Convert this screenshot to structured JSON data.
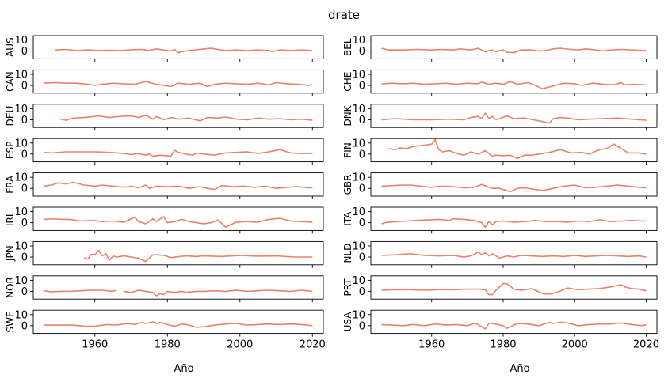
{
  "chart_data": {
    "type": "line",
    "title": "drate",
    "xlabel": "Año",
    "xlim": [
      1943,
      2023
    ],
    "ylim": [
      -7,
      14
    ],
    "xticks": [
      1960,
      1980,
      2000,
      2020
    ],
    "yticks": [
      0,
      10
    ],
    "line_color": "#e8826a",
    "grid": false,
    "panels": [
      {
        "name": "AUS",
        "x": [
          1949,
          1952,
          1955,
          1958,
          1961,
          1964,
          1967,
          1970,
          1973,
          1975,
          1977,
          1979,
          1981,
          1982,
          1983,
          1984,
          1986,
          1989,
          1992,
          1994,
          1996,
          1999,
          2002,
          2005,
          2008,
          2009,
          2011,
          2014,
          2017,
          2020
        ],
        "values": [
          1,
          1.5,
          0.5,
          1,
          0.5,
          0.8,
          0.5,
          1.2,
          1.5,
          0.5,
          2,
          1,
          0,
          1.5,
          -1.5,
          -0.5,
          0.5,
          1.5,
          2.5,
          1.5,
          0.5,
          1,
          0.5,
          1,
          0.5,
          -0.5,
          1,
          0.5,
          1,
          0.5
        ]
      },
      {
        "name": "BEL",
        "x": [
          1946,
          1948,
          1952,
          1956,
          1960,
          1963,
          1966,
          1968,
          1971,
          1973,
          1974,
          1975,
          1977,
          1978,
          1980,
          1981,
          1983,
          1985,
          1988,
          1990,
          1992,
          1994,
          1996,
          1999,
          2001,
          2003,
          2006,
          2008,
          2010,
          2013,
          2016,
          2020
        ],
        "values": [
          2.5,
          1,
          1,
          1.5,
          1,
          1.5,
          1,
          2,
          1,
          2.5,
          1,
          -0.5,
          1,
          -0.5,
          1,
          -1,
          -1.5,
          1,
          1,
          0,
          0.5,
          2,
          2.5,
          1.5,
          1,
          2,
          1,
          0,
          1,
          1.5,
          1,
          0.5
        ]
      },
      {
        "name": "CAN",
        "x": [
          1946,
          1949,
          1952,
          1955,
          1958,
          1960,
          1962,
          1965,
          1968,
          1971,
          1974,
          1977,
          1979,
          1981,
          1983,
          1986,
          1989,
          1991,
          1993,
          1996,
          1999,
          2002,
          2005,
          2008,
          2010,
          2013,
          2016,
          2019,
          2020
        ],
        "values": [
          2,
          2.5,
          2,
          2,
          1,
          0,
          1,
          2,
          1.5,
          1,
          3.5,
          1,
          0,
          -1,
          2,
          1,
          2,
          -1,
          1,
          2,
          1.5,
          1,
          2,
          0.5,
          2.5,
          1.5,
          1,
          0,
          1
        ]
      },
      {
        "name": "CHE",
        "x": [
          1946,
          1949,
          1952,
          1955,
          1958,
          1961,
          1964,
          1967,
          1970,
          1973,
          1974,
          1976,
          1978,
          1980,
          1982,
          1984,
          1987,
          1989,
          1991,
          1994,
          1997,
          2000,
          2002,
          2005,
          2008,
          2011,
          2013,
          2014,
          2016,
          2020
        ],
        "values": [
          1.5,
          2,
          1.5,
          2,
          1,
          1.5,
          2,
          1,
          2,
          1.5,
          3,
          1,
          2,
          1,
          3.5,
          1,
          2.5,
          0,
          -3,
          -0.5,
          2,
          1.5,
          0,
          2,
          1,
          0.5,
          2.5,
          0.5,
          1,
          0.5
        ]
      },
      {
        "name": "DEU",
        "x": [
          1950,
          1952,
          1954,
          1957,
          1960,
          1961,
          1964,
          1967,
          1970,
          1972,
          1974,
          1976,
          1977,
          1979,
          1981,
          1983,
          1986,
          1989,
          1991,
          1994,
          1996,
          1999,
          2002,
          2005,
          2008,
          2011,
          2014,
          2017,
          2020
        ],
        "values": [
          1,
          -0.5,
          1.5,
          2,
          3,
          3.5,
          2,
          3,
          3.5,
          2,
          4,
          0.5,
          3,
          0,
          2,
          0.5,
          1.5,
          -1,
          2,
          1.5,
          2.5,
          0.5,
          0,
          1.5,
          0.5,
          1,
          0,
          0.5,
          -0.5
        ]
      },
      {
        "name": "DNK",
        "x": [
          1946,
          1950,
          1955,
          1960,
          1965,
          1969,
          1971,
          1973,
          1974,
          1975,
          1976,
          1977,
          1978,
          1979,
          1981,
          1983,
          1986,
          1990,
          1993,
          1994,
          1996,
          1998,
          2001,
          2004,
          2008,
          2012,
          2016,
          2020
        ],
        "values": [
          0,
          1,
          0,
          0,
          0.5,
          0,
          2,
          3,
          1,
          6,
          1,
          3,
          0,
          1,
          3.5,
          1,
          1.5,
          -1,
          -3,
          1,
          2,
          1.5,
          0,
          0.5,
          1,
          1.5,
          0.5,
          -0.5
        ]
      },
      {
        "name": "ESP",
        "x": [
          1946,
          1948,
          1952,
          1956,
          1960,
          1964,
          1968,
          1970,
          1972,
          1974,
          1975,
          1976,
          1978,
          1981,
          1982,
          1983,
          1985,
          1987,
          1988,
          1990,
          1993,
          1996,
          1999,
          2002,
          2005,
          2008,
          2011,
          2014,
          2017,
          2020
        ],
        "values": [
          1.5,
          1,
          2,
          2,
          2,
          1.5,
          0.5,
          -0.5,
          0.5,
          -1,
          0,
          -2,
          -1,
          -2,
          3.5,
          1.5,
          0,
          -1,
          1,
          0,
          -1,
          1,
          1.5,
          2,
          0.5,
          2,
          4,
          1,
          0.5,
          0.5
        ]
      },
      {
        "name": "FIN",
        "x": [
          1948,
          1950,
          1951,
          1953,
          1955,
          1958,
          1960,
          1961,
          1962,
          1963,
          1965,
          1967,
          1969,
          1971,
          1973,
          1975,
          1977,
          1978,
          1980,
          1982,
          1984,
          1986,
          1988,
          1990,
          1993,
          1996,
          1999,
          2002,
          2004,
          2007,
          2009,
          2011,
          2013,
          2015,
          2018,
          2020
        ],
        "values": [
          5,
          4,
          5.5,
          5,
          7,
          8,
          9,
          13,
          4,
          2,
          3,
          0.5,
          -1,
          2,
          0,
          3,
          -2,
          -1,
          -1.5,
          -1,
          -4,
          -1,
          -1,
          0,
          1.5,
          4,
          1,
          1.5,
          0,
          4,
          5,
          9,
          5,
          1,
          1,
          0
        ]
      },
      {
        "name": "FRA",
        "x": [
          1946,
          1948,
          1950,
          1952,
          1954,
          1957,
          1960,
          1962,
          1965,
          1968,
          1970,
          1972,
          1974,
          1975,
          1977,
          1980,
          1983,
          1986,
          1989,
          1991,
          1993,
          1995,
          1998,
          2001,
          2004,
          2007,
          2010,
          2013,
          2016,
          2019,
          2020
        ],
        "values": [
          2,
          3,
          5,
          4,
          5.5,
          3,
          2,
          3,
          2,
          1,
          2,
          0.5,
          3,
          0,
          2,
          1.5,
          2,
          0,
          1.5,
          0,
          -1,
          2.5,
          1.5,
          2,
          1,
          2,
          0,
          1,
          1.5,
          0.5,
          0.5
        ]
      },
      {
        "name": "GBR",
        "x": [
          1946,
          1949,
          1952,
          1954,
          1957,
          1960,
          1963,
          1966,
          1969,
          1972,
          1974,
          1977,
          1979,
          1982,
          1984,
          1986,
          1989,
          1991,
          1994,
          1997,
          2000,
          2003,
          2006,
          2009,
          2012,
          2015,
          2018,
          2020
        ],
        "values": [
          2,
          2.5,
          3,
          3,
          2,
          1,
          2,
          1.5,
          0.5,
          1,
          3.5,
          0,
          0,
          -3,
          0,
          0.5,
          -1,
          -2,
          0,
          2,
          3,
          0.5,
          1,
          2,
          3,
          2,
          1,
          0.5
        ]
      },
      {
        "name": "IRL",
        "x": [
          1946,
          1948,
          1951,
          1953,
          1956,
          1959,
          1962,
          1965,
          1968,
          1971,
          1972,
          1974,
          1976,
          1977,
          1979,
          1980,
          1982,
          1984,
          1986,
          1988,
          1990,
          1992,
          1994,
          1996,
          1999,
          2002,
          2005,
          2008,
          2011,
          2014,
          2017,
          2020
        ],
        "values": [
          3,
          3.5,
          3,
          3,
          1.5,
          2,
          1,
          1.5,
          0.5,
          5,
          1,
          -1,
          3.5,
          1,
          5.5,
          0,
          1,
          3,
          1,
          0,
          -1,
          0,
          2.5,
          -4,
          0.5,
          1,
          0.5,
          3,
          4,
          1.5,
          1,
          0.5
        ]
      },
      {
        "name": "ITA",
        "x": [
          1946,
          1947,
          1950,
          1953,
          1956,
          1959,
          1962,
          1965,
          1966,
          1969,
          1972,
          1974,
          1975,
          1976,
          1977,
          1978,
          1980,
          1983,
          1986,
          1989,
          1992,
          1995,
          1998,
          2001,
          2004,
          2007,
          2010,
          2013,
          2016,
          2019,
          2020
        ],
        "values": [
          -1,
          0,
          1,
          1.5,
          2,
          2.5,
          3,
          2,
          3.5,
          3,
          2,
          0,
          -4,
          1,
          -2,
          1,
          1.5,
          0.5,
          1,
          2,
          1,
          1,
          0.5,
          1.5,
          1,
          2.5,
          1,
          1.5,
          2,
          1.5,
          1.5
        ]
      },
      {
        "name": "JPN",
        "x": [
          1957,
          1958,
          1959,
          1960,
          1961,
          1962,
          1963,
          1964,
          1965,
          1966,
          1968,
          1970,
          1972,
          1974,
          1976,
          1977,
          1979,
          1981,
          1985,
          1988,
          1990,
          1995,
          2000,
          2005,
          2010,
          2015,
          2020
        ],
        "values": [
          -0.5,
          -2,
          2.5,
          2,
          6,
          1,
          3,
          -3,
          1,
          0,
          1,
          0,
          -1,
          -4,
          2,
          2,
          1.5,
          -0.5,
          1,
          0.5,
          1,
          0.5,
          1.5,
          0.8,
          1,
          0,
          0
        ]
      },
      {
        "name": "NLD",
        "x": [
          1946,
          1950,
          1954,
          1958,
          1962,
          1966,
          1969,
          1971,
          1973,
          1974,
          1975,
          1976,
          1977,
          1979,
          1981,
          1983,
          1985,
          1988,
          1991,
          1994,
          1997,
          2000,
          2003,
          2006,
          2009,
          2012,
          2015,
          2018,
          2020
        ],
        "values": [
          1.5,
          2,
          3,
          1.5,
          1,
          1.5,
          0,
          1,
          4.5,
          2,
          4,
          1,
          3,
          -1,
          1,
          0,
          1.5,
          1,
          0.5,
          1,
          0.5,
          1.5,
          0.5,
          1,
          1.5,
          1,
          0.5,
          1,
          0
        ]
      },
      {
        "name": "NOR",
        "x": [
          1946,
          1948,
          1950,
          1953,
          1956,
          1959,
          1962,
          1965,
          1966
        ],
        "values": [
          0.5,
          -0.5,
          0,
          0,
          0.5,
          1,
          1,
          0,
          1
        ],
        "x2": [
          1968,
          1970,
          1972,
          1974,
          1976,
          1977,
          1978,
          1979,
          1980,
          1982,
          1984,
          1985,
          1988,
          1990,
          1993,
          1996,
          1999,
          2002,
          2005,
          2008,
          2011,
          2014,
          2017,
          2020
        ],
        "values2": [
          0,
          -1,
          1,
          0,
          -1,
          -4,
          -2,
          -3,
          0,
          -1,
          0,
          -1,
          0,
          0,
          0.5,
          0,
          1,
          0,
          0.5,
          1,
          0.5,
          0,
          1,
          0
        ]
      },
      {
        "name": "PRT",
        "x": [
          1946,
          1950,
          1954,
          1958,
          1962,
          1966,
          1970,
          1973,
          1975,
          1976,
          1977,
          1978,
          1980,
          1981,
          1983,
          1985,
          1988,
          1991,
          1993,
          1995,
          1998,
          2001,
          2004,
          2007,
          2010,
          2013,
          2014,
          2016,
          2018,
          2020
        ],
        "values": [
          1,
          1.5,
          1.5,
          1,
          1.5,
          1.5,
          2,
          2,
          1.5,
          -3,
          -3,
          1,
          7,
          7,
          2,
          1,
          2.5,
          -2,
          -2.5,
          -1,
          3,
          1.5,
          2,
          2.5,
          4,
          6,
          4,
          2.5,
          2,
          0.5
        ]
      },
      {
        "name": "SWE",
        "x": [
          1946,
          1950,
          1954,
          1957,
          1960,
          1963,
          1966,
          1969,
          1971,
          1973,
          1974,
          1976,
          1977,
          1978,
          1980,
          1982,
          1984,
          1986,
          1988,
          1990,
          1993,
          1996,
          1999,
          2002,
          2005,
          2008,
          2011,
          2014,
          2017,
          2020
        ],
        "values": [
          0.5,
          0.5,
          0.5,
          -0.5,
          -0.5,
          1,
          0.5,
          2,
          1,
          3,
          2,
          3.5,
          2,
          3,
          1,
          -0.5,
          1.5,
          0.5,
          -1.5,
          -1,
          0.5,
          1.5,
          2,
          0.5,
          1,
          1.5,
          1,
          1.5,
          1,
          0
        ]
      },
      {
        "name": "USA",
        "x": [
          1946,
          1949,
          1952,
          1955,
          1958,
          1961,
          1964,
          1967,
          1970,
          1972,
          1973,
          1975,
          1976,
          1977,
          1980,
          1981,
          1982,
          1984,
          1987,
          1990,
          1993,
          1994,
          1996,
          1998,
          2001,
          2004,
          2007,
          2010,
          2013,
          2016,
          2019,
          2020
        ],
        "values": [
          1,
          0.5,
          0,
          1,
          0,
          1.5,
          0.5,
          1,
          0,
          2,
          1,
          -3,
          2,
          2,
          0,
          -2.5,
          -1,
          2,
          1.5,
          0,
          3,
          2,
          3,
          2.5,
          0,
          1,
          1.5,
          1.5,
          2.5,
          1,
          0,
          1
        ]
      }
    ]
  }
}
